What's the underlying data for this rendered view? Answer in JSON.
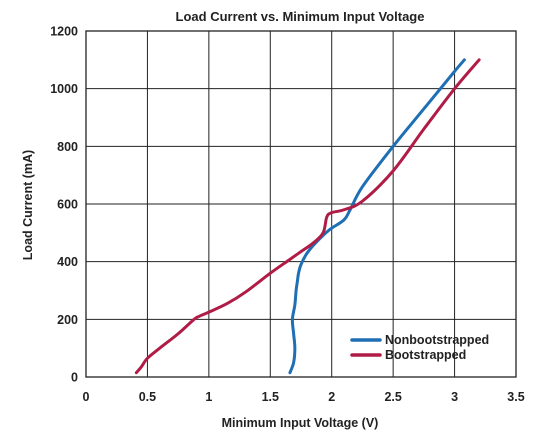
{
  "chart_data": {
    "type": "line",
    "title": "Load Current vs. Minimum Input Voltage",
    "xlabel": "Minimum Input Voltage (V)",
    "ylabel": "Load Current (mA)",
    "xlim": [
      0,
      3.5
    ],
    "ylim": [
      0,
      1200
    ],
    "xticks": [
      0,
      0.5,
      1,
      1.5,
      2,
      2.5,
      3,
      3.5
    ],
    "xtick_labels": [
      "0",
      "0.5",
      "1",
      "1.5",
      "2",
      "2.5",
      "3",
      "3.5"
    ],
    "yticks": [
      0,
      200,
      400,
      600,
      800,
      1000,
      1200
    ],
    "ytick_labels": [
      "0",
      "200",
      "400",
      "600",
      "800",
      "1000",
      "1200"
    ],
    "grid": true,
    "legend_position": "bottom-right",
    "series": [
      {
        "name": "Nonbootstrapped",
        "color": "#1f6fb5",
        "x": [
          1.66,
          1.69,
          1.7,
          1.69,
          1.68,
          1.7,
          1.71,
          1.72,
          1.73,
          1.75,
          1.8,
          1.88,
          1.98,
          2.1,
          2.15,
          2.25,
          2.5,
          2.75,
          3.0,
          3.08
        ],
        "y": [
          15,
          50,
          100,
          150,
          200,
          250,
          300,
          330,
          360,
          390,
          430,
          470,
          510,
          545,
          580,
          660,
          800,
          930,
          1060,
          1100
        ]
      },
      {
        "name": "Bootstrapped",
        "color": "#b01c46",
        "x": [
          0.41,
          0.45,
          0.5,
          0.6,
          0.75,
          0.88,
          0.92,
          1.0,
          1.15,
          1.3,
          1.5,
          1.65,
          1.75,
          1.85,
          1.93,
          1.96,
          2.0,
          2.1,
          2.25,
          2.5,
          2.75,
          3.0,
          3.2
        ],
        "y": [
          15,
          35,
          65,
          100,
          150,
          200,
          210,
          225,
          255,
          295,
          360,
          405,
          435,
          465,
          500,
          555,
          570,
          580,
          610,
          715,
          860,
          1000,
          1100
        ]
      }
    ]
  },
  "colors": {
    "grid": "#222222",
    "axes": "#222222",
    "text": "#222222",
    "background": "#ffffff"
  }
}
